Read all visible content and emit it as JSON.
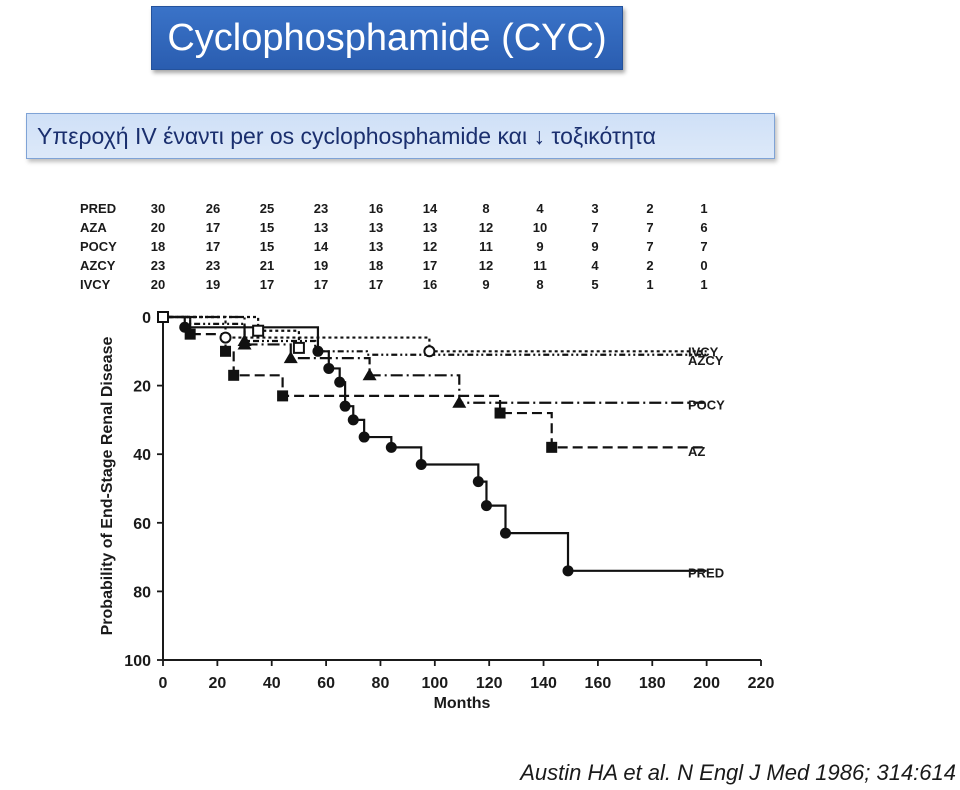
{
  "slide": {
    "title": "Cyclophosphamide (CYC)",
    "subtitle": "Υπεροχή IV έναντι per os cyclophosphamide και ↓ τοξικότητα",
    "citation": "Austin HA et al. N Engl J Med 1986; 314:614",
    "title_bg": "#2f65b8",
    "subtitle_bg": "#d6e4f8"
  },
  "chart_data": {
    "type": "line",
    "step": true,
    "xlabel": "Months",
    "ylabel": "Probability of End-Stage Renal Disease",
    "xlim": [
      0,
      220
    ],
    "ylim": [
      0,
      100
    ],
    "y_inverted": true,
    "x_ticks": [
      0,
      20,
      40,
      60,
      80,
      100,
      120,
      140,
      160,
      180,
      200,
      220
    ],
    "y_ticks": [
      0,
      20,
      40,
      60,
      80,
      100
    ],
    "grid": false,
    "at_risk": {
      "rows": [
        {
          "label": "PRED",
          "values": [
            30,
            26,
            25,
            23,
            16,
            14,
            8,
            4,
            3,
            2,
            1
          ]
        },
        {
          "label": "AZA",
          "values": [
            20,
            17,
            15,
            13,
            13,
            13,
            12,
            10,
            7,
            7,
            6
          ]
        },
        {
          "label": "POCY",
          "values": [
            18,
            17,
            15,
            14,
            13,
            12,
            11,
            9,
            9,
            7,
            7
          ]
        },
        {
          "label": "AZCY",
          "values": [
            23,
            23,
            21,
            19,
            18,
            17,
            12,
            11,
            4,
            2,
            0
          ]
        },
        {
          "label": "IVCY",
          "values": [
            20,
            19,
            17,
            17,
            17,
            16,
            9,
            8,
            5,
            1,
            1
          ]
        }
      ]
    },
    "series": [
      {
        "name": "PRED",
        "marker": "circle",
        "dash": "",
        "x": [
          0,
          8,
          57,
          61,
          65,
          67,
          70,
          74,
          84,
          95,
          116,
          119,
          126,
          149,
          200
        ],
        "y": [
          0,
          3,
          10,
          15,
          19,
          26,
          30,
          35,
          38,
          43,
          48,
          55,
          63,
          74,
          74
        ],
        "marks": [
          [
            8,
            3
          ],
          [
            57,
            10
          ],
          [
            61,
            15
          ],
          [
            65,
            19
          ],
          [
            67,
            26
          ],
          [
            70,
            30
          ],
          [
            74,
            35
          ],
          [
            84,
            38
          ],
          [
            95,
            43
          ],
          [
            116,
            48
          ],
          [
            119,
            55
          ],
          [
            126,
            63
          ],
          [
            149,
            74
          ]
        ]
      },
      {
        "name": "AZ",
        "marker": "square",
        "dash": "10,5",
        "x": [
          0,
          10,
          23,
          26,
          44,
          124,
          143,
          200
        ],
        "y": [
          0,
          5,
          10,
          17,
          23,
          28,
          38,
          38
        ],
        "marks": [
          [
            10,
            5
          ],
          [
            23,
            10
          ],
          [
            26,
            17
          ],
          [
            44,
            23
          ],
          [
            124,
            28
          ],
          [
            143,
            38
          ]
        ]
      },
      {
        "name": "POCY",
        "marker": "triangle",
        "dash": "12,4,2,4",
        "x": [
          0,
          30,
          47,
          76,
          109,
          200
        ],
        "y": [
          0,
          8,
          12,
          17,
          25,
          25
        ],
        "marks": [
          [
            30,
            8
          ],
          [
            47,
            12
          ],
          [
            76,
            17
          ],
          [
            109,
            25
          ]
        ]
      },
      {
        "name": "AZCY",
        "marker": "triangle",
        "dash": "6,3,2,3,2,3",
        "x": [
          0,
          10,
          30,
          56,
          75,
          200
        ],
        "y": [
          0,
          2,
          7,
          10,
          11,
          11
        ],
        "marks": [
          [
            30,
            7
          ]
        ]
      },
      {
        "name": "IVCY",
        "marker": "open-circle",
        "dash": "3,3",
        "x": [
          0,
          23,
          98,
          200
        ],
        "y": [
          0,
          6,
          10,
          10
        ],
        "marks": [
          [
            23,
            6
          ],
          [
            98,
            10
          ]
        ]
      },
      {
        "name": "",
        "marker": "open-square",
        "dash": "3,3",
        "x": [
          0,
          35,
          50
        ],
        "y": [
          0,
          4,
          9
        ],
        "marks": [
          [
            0,
            0
          ],
          [
            35,
            4
          ],
          [
            50,
            9
          ]
        ]
      }
    ]
  }
}
